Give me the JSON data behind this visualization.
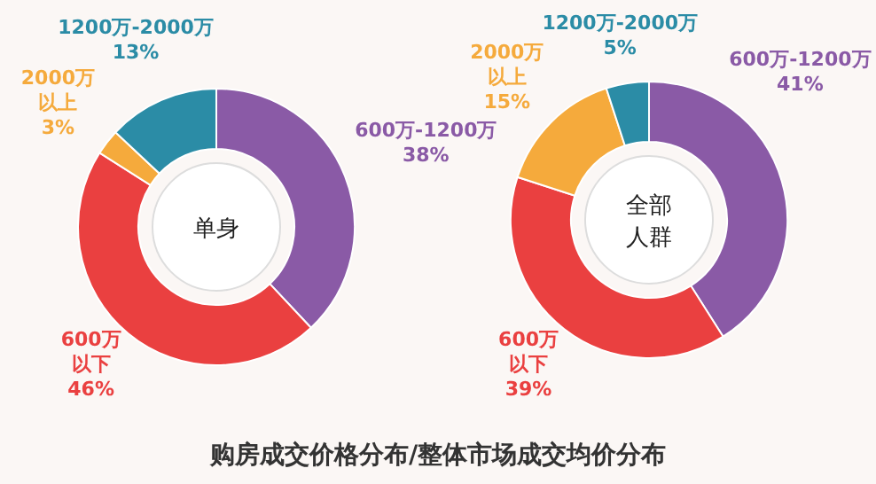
{
  "chart_data": [
    {
      "type": "donut",
      "title": "单身",
      "categories": [
        "600万-1200万",
        "600万以下",
        "2000万以上",
        "1200万-2000万"
      ],
      "values": [
        38,
        46,
        3,
        13
      ],
      "value_labels": [
        "38%",
        "46%",
        "3%",
        "13%"
      ],
      "colors": [
        "#8a5aa6",
        "#ea4040",
        "#f5aa3c",
        "#2b8ca6"
      ],
      "annotations": [
        "购房成交价格分布/整体市场成交均价分布"
      ]
    },
    {
      "type": "donut",
      "title": "全部人群",
      "categories": [
        "600万-1200万",
        "600万以下",
        "2000万以上",
        "1200万-2000万"
      ],
      "values": [
        41,
        39,
        15,
        5
      ],
      "value_labels": [
        "41%",
        "39%",
        "15%",
        "5%"
      ],
      "colors": [
        "#8a5aa6",
        "#ea4040",
        "#f5aa3c",
        "#2b8ca6"
      ]
    }
  ]
}
